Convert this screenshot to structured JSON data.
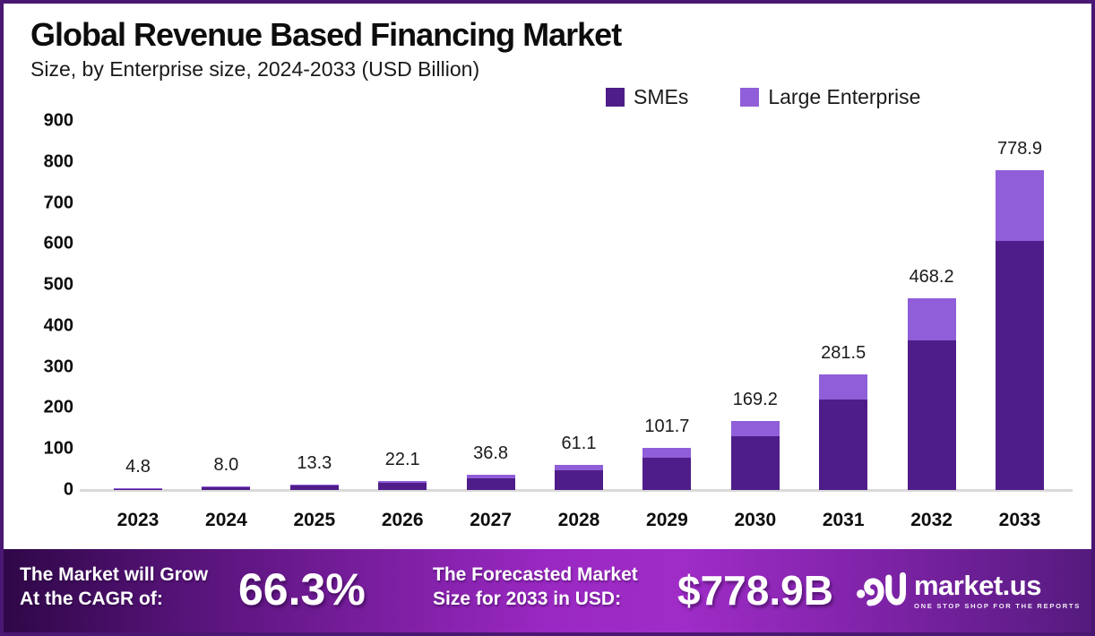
{
  "header": {
    "title": "Global Revenue Based Financing Market",
    "subtitle": "Size, by Enterprise size, 2024-2033 (USD Billion)"
  },
  "legend": {
    "items": [
      {
        "label": "SMEs",
        "color": "#4e1d89"
      },
      {
        "label": "Large Enterprise",
        "color": "#8f5ed8"
      }
    ]
  },
  "chart_data": {
    "type": "bar",
    "stacked": true,
    "title": "Global Revenue Based Financing Market Size, by Enterprise size, 2024-2033 (USD Billion)",
    "categories": [
      "2023",
      "2024",
      "2025",
      "2026",
      "2027",
      "2028",
      "2029",
      "2030",
      "2031",
      "2032",
      "2033"
    ],
    "series": [
      {
        "name": "SMEs",
        "color": "#4e1d89",
        "values": [
          3.7,
          6.2,
          10.4,
          17.2,
          28.7,
          47.7,
          79.3,
          131.0,
          219.6,
          365.2,
          607.5
        ]
      },
      {
        "name": "Large Enterprise",
        "color": "#8f5ed8",
        "values": [
          1.1,
          1.8,
          2.9,
          4.9,
          8.1,
          13.4,
          22.4,
          38.2,
          61.9,
          103.0,
          171.4
        ]
      }
    ],
    "totals": [
      4.8,
      8.0,
      13.3,
      22.1,
      36.8,
      61.1,
      101.7,
      169.2,
      281.5,
      468.2,
      778.9
    ],
    "total_labels": [
      "4.8",
      "8.0",
      "13.3",
      "22.1",
      "36.8",
      "61.1",
      "101.7",
      "169.2",
      "281.5",
      "468.2",
      "778.9"
    ],
    "xlabel": "",
    "ylabel": "",
    "ylim": [
      0,
      900
    ],
    "yticks": [
      0,
      100,
      200,
      300,
      400,
      500,
      600,
      700,
      800,
      900
    ],
    "grid": false,
    "legend_position": "top-right"
  },
  "banner": {
    "cagr_label_line1": "The Market will Grow",
    "cagr_label_line2": "At the CAGR of:",
    "cagr_value": "66.3%",
    "forecast_label_line1": "The Forecasted Market",
    "forecast_label_line2": "Size for 2033 in USD:",
    "forecast_value": "$778.9B",
    "brand_name": "market.us",
    "brand_tagline": "ONE STOP SHOP FOR THE REPORTS"
  },
  "colors": {
    "frame_border": "#4a1772",
    "sme_bar": "#4e1d89",
    "large_enterprise_bar": "#8f5ed8",
    "baseline": "#d9d9d9",
    "banner_gradient_start": "#2f0747",
    "banner_gradient_mid": "#a02cc8",
    "banner_gradient_end": "#551b7e"
  }
}
